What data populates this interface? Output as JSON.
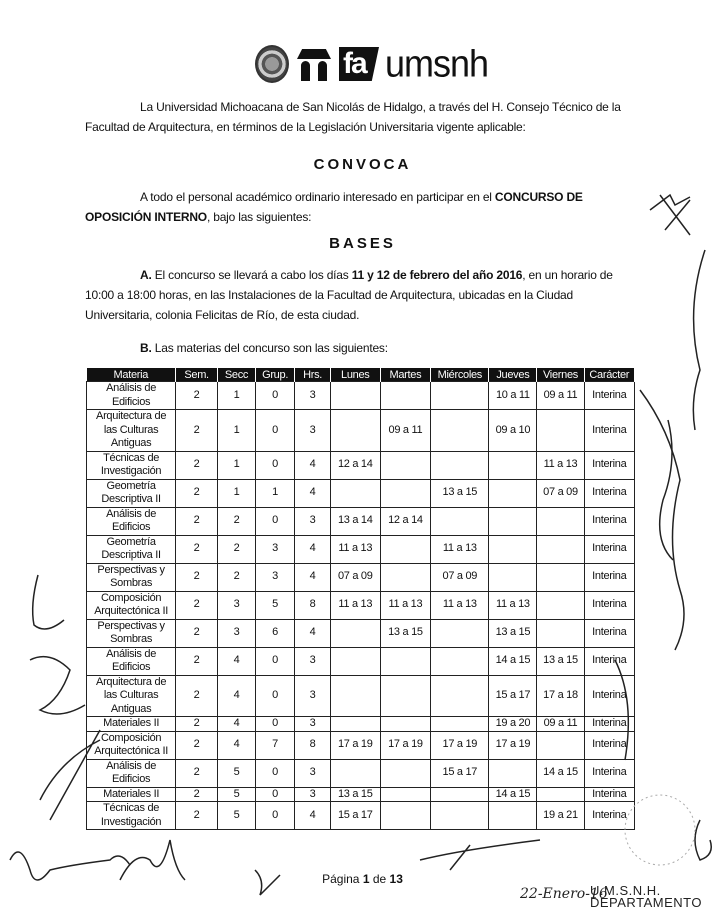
{
  "header": {
    "logo_text": "fa umsnh"
  },
  "intro": "La Universidad Michoacana de San Nicolás de Hidalgo, a través del H. Consejo Técnico de la Facultad de Arquitectura,  en términos de la Legislación Universitaria vigente aplicable:",
  "convoca_title": "CONVOCA",
  "convoca": {
    "text_before": "A todo el personal académico ordinario interesado en participar en el ",
    "text_bold": "CONCURSO DE OPOSICIÓN INTERNO",
    "text_after": ", bajo las siguientes:"
  },
  "bases_title": "BASES",
  "base_a": {
    "label": "A.",
    "t1": " El concurso se llevará a cabo los días ",
    "bold": "11 y 12 de febrero del año 2016",
    "t2": ", en un horario de 10:00 a 18:00 horas, en las Instalaciones de la Facultad de Arquitectura, ubicadas en la Ciudad Universitaria, colonia Felicitas de Río, de esta ciudad."
  },
  "base_b": {
    "label": "B.",
    "text": " Las materias del concurso son las siguientes:"
  },
  "table": {
    "headers": [
      "Materia",
      "Sem.",
      "Secc",
      "Grup.",
      "Hrs.",
      "Lunes",
      "Martes",
      "Miércoles",
      "Jueves",
      "Viernes",
      "Carácter"
    ],
    "rows": [
      [
        "Análisis de Edificios",
        "2",
        "1",
        "0",
        "3",
        "",
        "",
        "",
        "10 a 11",
        "09 a 11",
        "Interina"
      ],
      [
        "Arquitectura de las Culturas Antiguas",
        "2",
        "1",
        "0",
        "3",
        "",
        "09 a 11",
        "",
        "09 a 10",
        "",
        "Interina"
      ],
      [
        "Técnicas de Investigación",
        "2",
        "1",
        "0",
        "4",
        "12 a 14",
        "",
        "",
        "",
        "11 a 13",
        "Interina"
      ],
      [
        "Geometría Descriptiva II",
        "2",
        "1",
        "1",
        "4",
        "",
        "",
        "13 a 15",
        "",
        "07 a 09",
        "Interina"
      ],
      [
        "Análisis de Edificios",
        "2",
        "2",
        "0",
        "3",
        "13 a 14",
        "12 a 14",
        "",
        "",
        "",
        "Interina"
      ],
      [
        "Geometría Descriptiva II",
        "2",
        "2",
        "3",
        "4",
        "11 a 13",
        "",
        "11 a 13",
        "",
        "",
        "Interina"
      ],
      [
        "Perspectivas y Sombras",
        "2",
        "2",
        "3",
        "4",
        "07 a 09",
        "",
        "07 a 09",
        "",
        "",
        "Interina"
      ],
      [
        "Composición Arquitectónica II",
        "2",
        "3",
        "5",
        "8",
        "11 a 13",
        "11 a 13",
        "11 a 13",
        "11 a 13",
        "",
        "Interina"
      ],
      [
        "Perspectivas y Sombras",
        "2",
        "3",
        "6",
        "4",
        "",
        "13 a 15",
        "",
        "13 a 15",
        "",
        "Interina"
      ],
      [
        "Análisis de Edificios",
        "2",
        "4",
        "0",
        "3",
        "",
        "",
        "",
        "14 a 15",
        "13 a 15",
        "Interina"
      ],
      [
        "Arquitectura de las Culturas Antiguas",
        "2",
        "4",
        "0",
        "3",
        "",
        "",
        "",
        "15 a 17",
        "17 a 18",
        "Interina"
      ],
      [
        "Materiales II",
        "2",
        "4",
        "0",
        "3",
        "",
        "",
        "",
        "19 a 20",
        "09 a 11",
        "Interina"
      ],
      [
        "Composición Arquitectónica II",
        "2",
        "4",
        "7",
        "8",
        "17 a 19",
        "17 a 19",
        "17 a 19",
        "17 a 19",
        "",
        "Interina"
      ],
      [
        "Análisis de Edificios",
        "2",
        "5",
        "0",
        "3",
        "",
        "",
        "15 a 17",
        "",
        "14 a 15",
        "Interina"
      ],
      [
        "Materiales II",
        "2",
        "5",
        "0",
        "3",
        "13 a 15",
        "",
        "",
        "14 a 15",
        "",
        "Interina"
      ],
      [
        "Técnicas de Investigación",
        "2",
        "5",
        "0",
        "4",
        "15 a 17",
        "",
        "",
        "",
        "19 a 21",
        "Interina"
      ]
    ]
  },
  "footer": {
    "page_prefix": "Página ",
    "page_current": "1",
    "page_sep": " de ",
    "page_total": "13",
    "handwritten_date": "22-Enero-16",
    "stamp_line1": "U.M.S.N.H.",
    "stamp_line2": "DEPARTAMENTO"
  }
}
